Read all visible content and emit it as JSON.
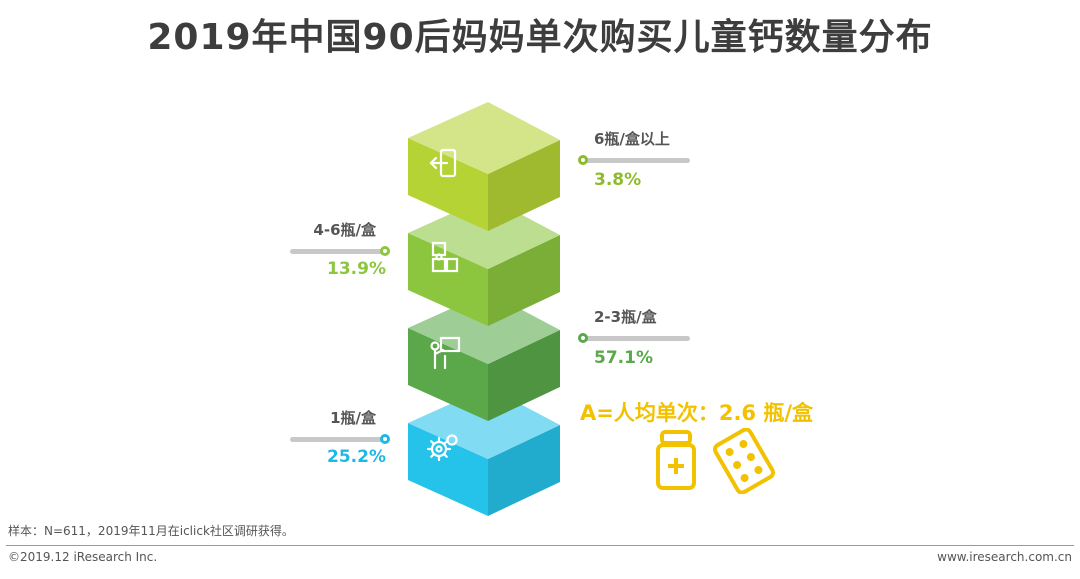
{
  "title": "2019年中国90后妈妈单次购买儿童钙数量分布",
  "chart_data": {
    "type": "bar",
    "title": "2019年中国90后妈妈单次购买儿童钙数量分布",
    "categories": [
      "6瓶/盒以上",
      "4-6瓶/盒",
      "2-3瓶/盒",
      "1瓶/盒"
    ],
    "values": [
      3.8,
      13.9,
      57.1,
      25.2
    ],
    "value_labels": [
      "3.8%",
      "13.9%",
      "57.1%",
      "25.2%"
    ],
    "unit": "%",
    "colors": [
      "#b5d334",
      "#8cc63f",
      "#5aa84a",
      "#25c3ea"
    ],
    "label_sides": [
      "right",
      "left",
      "right",
      "left"
    ],
    "annotation": "A=人均单次：2.6 瓶/盒"
  },
  "note": "样本：N=611，2019年11月在iclick社区调研获得。",
  "footer": {
    "copyright": "©2019.12 iResearch Inc.",
    "website": "www.iresearch.com.cn"
  },
  "colors": {
    "annotation": "#f2c200",
    "slider_track": "#c8c8c8",
    "title": "#3d3d3d"
  },
  "icons": [
    "exit-door-icon",
    "puzzle-icon",
    "presenter-icon",
    "gears-icon",
    "medicine-bottle-icon",
    "pill-blister-icon"
  ]
}
